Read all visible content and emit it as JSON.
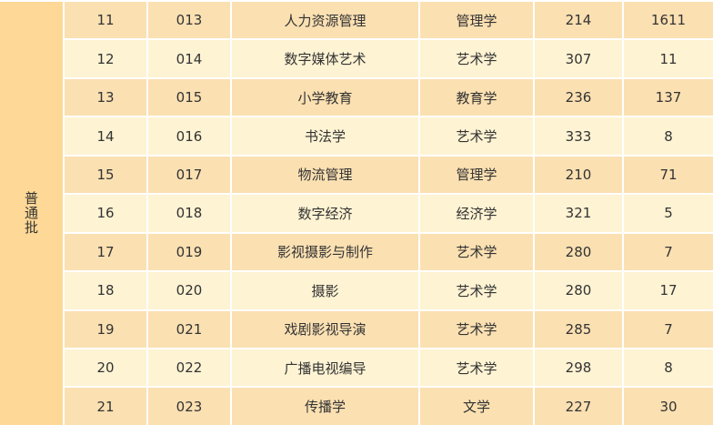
{
  "batch": "普通批",
  "colors": {
    "batch_bg": "#fdd896",
    "row_dark": "#fbe0b2",
    "row_light": "#fef3d3"
  },
  "rows": [
    [
      "11",
      "013",
      "人力资源管理",
      "管理学",
      "214",
      "1611"
    ],
    [
      "12",
      "014",
      "数字媒体艺术",
      "艺术学",
      "307",
      "11"
    ],
    [
      "13",
      "015",
      "小学教育",
      "教育学",
      "236",
      "137"
    ],
    [
      "14",
      "016",
      "书法学",
      "艺术学",
      "333",
      "8"
    ],
    [
      "15",
      "017",
      "物流管理",
      "管理学",
      "210",
      "71"
    ],
    [
      "16",
      "018",
      "数字经济",
      "经济学",
      "321",
      "5"
    ],
    [
      "17",
      "019",
      "影视摄影与制作",
      "艺术学",
      "280",
      "7"
    ],
    [
      "18",
      "020",
      "摄影",
      "艺术学",
      "280",
      "17"
    ],
    [
      "19",
      "021",
      "戏剧影视导演",
      "艺术学",
      "285",
      "7"
    ],
    [
      "20",
      "022",
      "广播电视编导",
      "艺术学",
      "298",
      "8"
    ],
    [
      "21",
      "023",
      "传播学",
      "文学",
      "227",
      "30"
    ]
  ]
}
